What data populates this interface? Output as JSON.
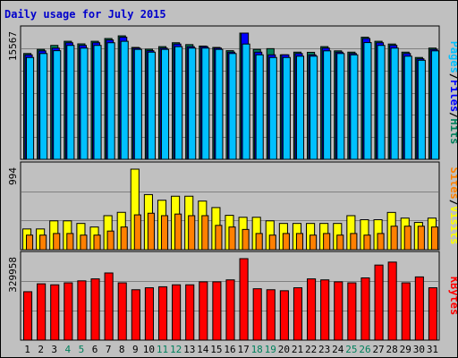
{
  "window": {
    "title": "Daily usage for July 2015"
  },
  "colors": {
    "background": "#c0c0c0",
    "hits": "#00805c",
    "files": "#0000ff",
    "pages": "#00c0ff",
    "visits": "#ffff00",
    "sites": "#ff8000",
    "kbytes": "#ff0000",
    "weekend_label": "#00805c",
    "title": "#0000cc"
  },
  "chart_data": [
    {
      "type": "bar",
      "panel": "top",
      "title": "Daily usage for July 2015",
      "legend": [
        {
          "text": "Pages",
          "color": "#00c0ff"
        },
        {
          "text": "/",
          "color": "#000000"
        },
        {
          "text": "Files",
          "color": "#0000ff"
        },
        {
          "text": "/",
          "color": "#000000"
        },
        {
          "text": "Hits",
          "color": "#00805c"
        }
      ],
      "legend_placement": "right",
      "ymax_label": "15567",
      "ylim": [
        0,
        15567
      ],
      "categories": [
        "1",
        "2",
        "3",
        "4",
        "5",
        "6",
        "7",
        "8",
        "9",
        "10",
        "11",
        "12",
        "13",
        "14",
        "15",
        "16",
        "17",
        "18",
        "19",
        "20",
        "21",
        "22",
        "23",
        "24",
        "25",
        "26",
        "27",
        "28",
        "29",
        "30",
        "31"
      ],
      "weekend_days": [
        "4",
        "5",
        "11",
        "12",
        "18",
        "19",
        "25",
        "26"
      ],
      "series": [
        {
          "name": "Hits",
          "values": [
            13050,
            13560,
            14050,
            14560,
            14240,
            14560,
            14900,
            15230,
            13800,
            13580,
            13900,
            14380,
            14150,
            13970,
            13800,
            13400,
            15567,
            13560,
            13650,
            12890,
            13220,
            13200,
            13900,
            13380,
            13220,
            15060,
            14560,
            14220,
            13220,
            12560,
            13720
          ]
        },
        {
          "name": "Files",
          "values": [
            12890,
            13380,
            13720,
            14380,
            14050,
            14380,
            14720,
            15060,
            13720,
            13400,
            13720,
            14220,
            13900,
            13900,
            13720,
            13220,
            15567,
            13220,
            12890,
            12890,
            13050,
            12890,
            13720,
            13220,
            13050,
            14900,
            14380,
            14050,
            13050,
            12400,
            13560
          ]
        },
        {
          "name": "Pages",
          "values": [
            12560,
            13050,
            13400,
            14050,
            13720,
            14050,
            14380,
            14560,
            13560,
            13220,
            13560,
            13900,
            13720,
            13720,
            13560,
            13050,
            14220,
            12890,
            12560,
            12560,
            12720,
            12720,
            13380,
            13050,
            12890,
            14400,
            14050,
            13720,
            12720,
            12220,
            13380
          ]
        }
      ]
    },
    {
      "type": "bar",
      "panel": "middle",
      "legend": [
        {
          "text": "Sites",
          "color": "#ff8000"
        },
        {
          "text": "/",
          "color": "#000000"
        },
        {
          "text": "Visits",
          "color": "#ffff00"
        }
      ],
      "legend_placement": "right",
      "ymax_label": "994",
      "ylim": [
        0,
        994
      ],
      "series": [
        {
          "name": "Visits",
          "values": [
            256,
            256,
            356,
            356,
            324,
            280,
            420,
            461,
            994,
            680,
            610,
            660,
            660,
            600,
            520,
            424,
            400,
            400,
            356,
            324,
            324,
            324,
            324,
            324,
            420,
            370,
            370,
            460,
            390,
            336,
            390
          ]
        },
        {
          "name": "Sites",
          "values": [
            180,
            180,
            200,
            200,
            180,
            180,
            230,
            280,
            430,
            450,
            420,
            440,
            420,
            420,
            300,
            280,
            250,
            200,
            180,
            200,
            200,
            180,
            200,
            180,
            200,
            180,
            200,
            290,
            290,
            290,
            280
          ]
        }
      ]
    },
    {
      "type": "bar",
      "panel": "bottom",
      "legend": [
        {
          "text": "KBytes",
          "color": "#ff0000"
        }
      ],
      "legend_placement": "right",
      "ymax_label": "329958",
      "ylim": [
        0,
        329958
      ],
      "series": [
        {
          "name": "KBytes",
          "values": [
            196000,
            228000,
            224000,
            232000,
            240000,
            248000,
            272000,
            232000,
            204000,
            212000,
            216000,
            224000,
            224000,
            236000,
            236000,
            244000,
            329958,
            208000,
            204000,
            200000,
            212000,
            248000,
            244000,
            236000,
            232000,
            252000,
            304000,
            316000,
            232000,
            256000,
            212000
          ]
        }
      ]
    }
  ]
}
